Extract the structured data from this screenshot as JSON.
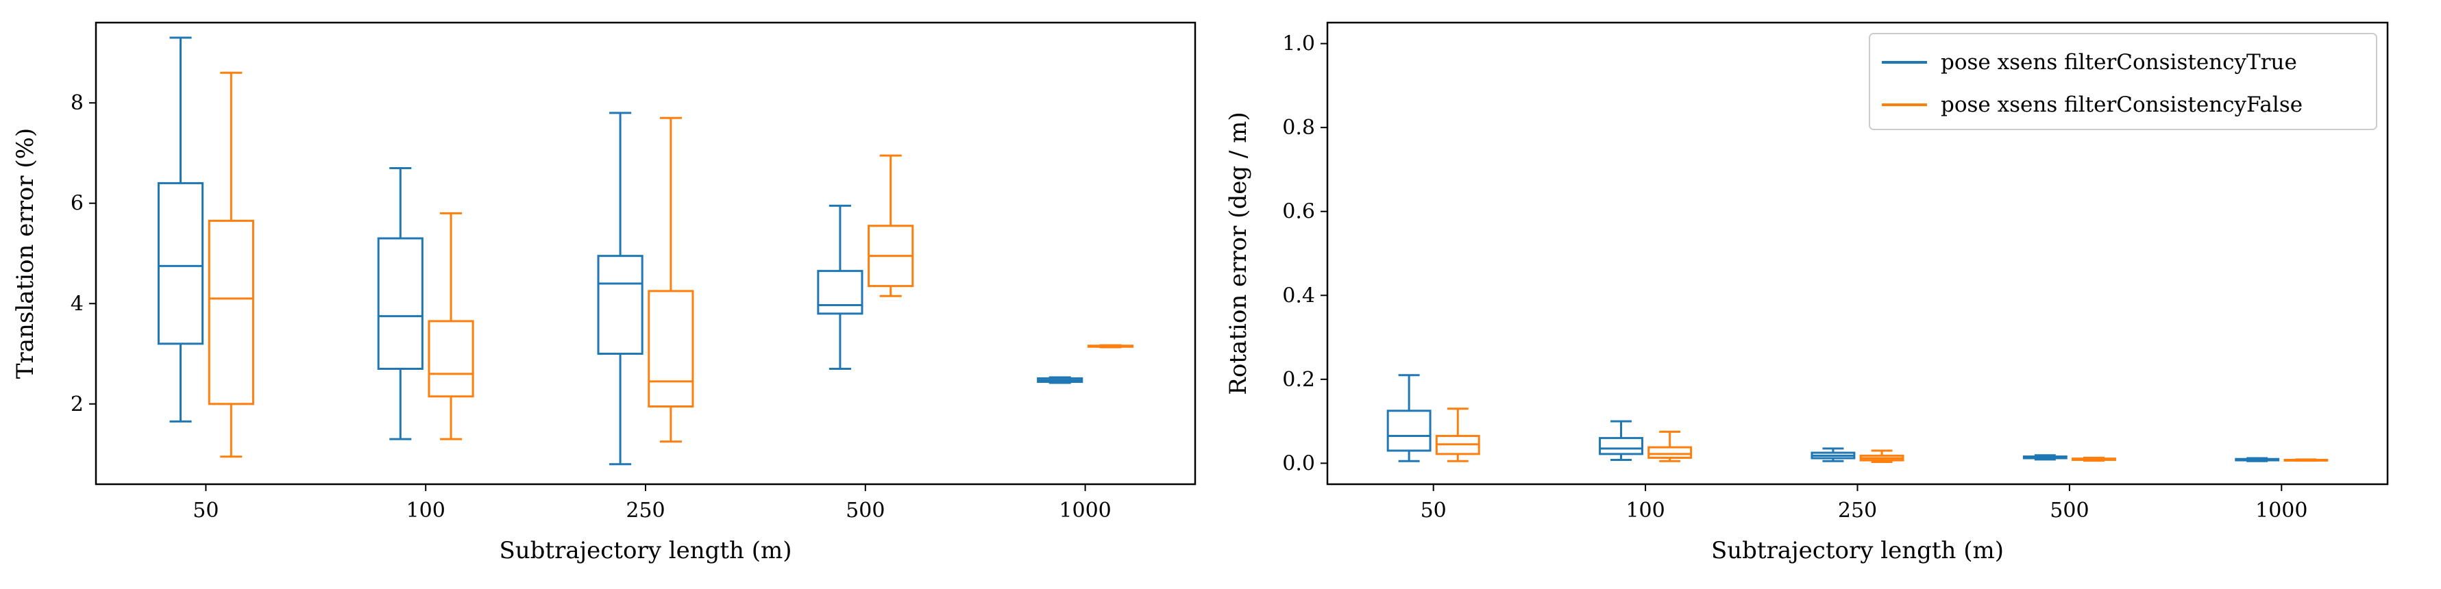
{
  "chart_data": [
    {
      "type": "box",
      "xlabel": "Subtrajectory length (m)",
      "ylabel": "Translation error (%)",
      "categories": [
        "50",
        "100",
        "250",
        "500",
        "1000"
      ],
      "ylim": [
        0.4,
        9.6
      ],
      "yticks": [
        "2",
        "4",
        "6",
        "8"
      ],
      "grid": false,
      "legend": null,
      "series": [
        {
          "name": "pose xsens filterConsistencyTrue",
          "color": "#1f77b4",
          "boxes": [
            {
              "whislo": 1.65,
              "q1": 3.2,
              "med": 4.75,
              "q3": 6.4,
              "whishi": 9.3
            },
            {
              "whislo": 1.3,
              "q1": 2.7,
              "med": 3.75,
              "q3": 5.3,
              "whishi": 6.7
            },
            {
              "whislo": 0.8,
              "q1": 3.0,
              "med": 4.4,
              "q3": 4.95,
              "whishi": 7.8
            },
            {
              "whislo": 2.7,
              "q1": 3.8,
              "med": 3.97,
              "q3": 4.65,
              "whishi": 5.95
            },
            {
              "whislo": 2.42,
              "q1": 2.44,
              "med": 2.47,
              "q3": 2.51,
              "whishi": 2.53
            }
          ]
        },
        {
          "name": "pose xsens filterConsistencyFalse",
          "color": "#ff7f0e",
          "boxes": [
            {
              "whislo": 0.95,
              "q1": 2.0,
              "med": 4.1,
              "q3": 5.65,
              "whishi": 8.6
            },
            {
              "whislo": 1.3,
              "q1": 2.15,
              "med": 2.6,
              "q3": 3.65,
              "whishi": 5.8
            },
            {
              "whislo": 1.25,
              "q1": 1.95,
              "med": 2.45,
              "q3": 4.25,
              "whishi": 7.7
            },
            {
              "whislo": 4.15,
              "q1": 4.35,
              "med": 4.95,
              "q3": 5.55,
              "whishi": 6.95
            },
            {
              "whislo": 3.13,
              "q1": 3.14,
              "med": 3.15,
              "q3": 3.16,
              "whishi": 3.17
            }
          ]
        }
      ]
    },
    {
      "type": "box",
      "xlabel": "Subtrajectory length (m)",
      "ylabel": "Rotation error (deg / m)",
      "categories": [
        "50",
        "100",
        "250",
        "500",
        "1000"
      ],
      "ylim": [
        -0.05,
        1.05
      ],
      "yticks": [
        "0.0",
        "0.2",
        "0.4",
        "0.6",
        "0.8",
        "1.0"
      ],
      "grid": false,
      "legend": "top-right",
      "series": [
        {
          "name": "pose xsens filterConsistencyTrue",
          "color": "#1f77b4",
          "boxes": [
            {
              "whislo": 0.005,
              "q1": 0.03,
              "med": 0.065,
              "q3": 0.125,
              "whishi": 0.21
            },
            {
              "whislo": 0.008,
              "q1": 0.022,
              "med": 0.035,
              "q3": 0.06,
              "whishi": 0.1
            },
            {
              "whislo": 0.005,
              "q1": 0.012,
              "med": 0.018,
              "q3": 0.025,
              "whishi": 0.035
            },
            {
              "whislo": 0.009,
              "q1": 0.012,
              "med": 0.014,
              "q3": 0.016,
              "whishi": 0.019
            },
            {
              "whislo": 0.005,
              "q1": 0.007,
              "med": 0.009,
              "q3": 0.01,
              "whishi": 0.012
            }
          ]
        },
        {
          "name": "pose xsens filterConsistencyFalse",
          "color": "#ff7f0e",
          "boxes": [
            {
              "whislo": 0.005,
              "q1": 0.022,
              "med": 0.045,
              "q3": 0.065,
              "whishi": 0.13
            },
            {
              "whislo": 0.005,
              "q1": 0.013,
              "med": 0.022,
              "q3": 0.038,
              "whishi": 0.075
            },
            {
              "whislo": 0.003,
              "q1": 0.007,
              "med": 0.012,
              "q3": 0.018,
              "whishi": 0.03
            },
            {
              "whislo": 0.006,
              "q1": 0.008,
              "med": 0.009,
              "q3": 0.011,
              "whishi": 0.013
            },
            {
              "whislo": 0.006,
              "q1": 0.007,
              "med": 0.007,
              "q3": 0.008,
              "whishi": 0.009
            }
          ]
        }
      ]
    }
  ]
}
